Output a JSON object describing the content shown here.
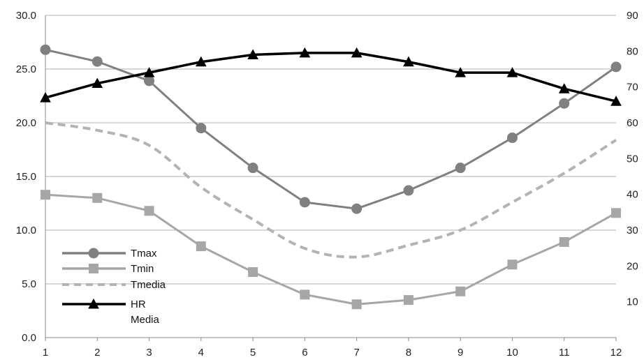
{
  "chart_data": {
    "type": "line",
    "title": "",
    "xlabel": "",
    "ylabel": "",
    "y2label": "",
    "categories": [
      "1",
      "2",
      "3",
      "4",
      "5",
      "6",
      "7",
      "8",
      "9",
      "10",
      "11",
      "12"
    ],
    "ylim": [
      0,
      30
    ],
    "y_ticks": [
      "0.0",
      "5.0",
      "10.0",
      "15.0",
      "20.0",
      "25.0",
      "30.0"
    ],
    "y2lim": [
      0,
      90
    ],
    "y2_ticks": [
      "10",
      "20",
      "30",
      "40",
      "50",
      "60",
      "70",
      "80",
      "90"
    ],
    "grid": true,
    "legend_position": "bottom-left",
    "series": [
      {
        "name": "Tmax",
        "axis": "left",
        "marker": "circle",
        "line_style": "solid",
        "color": "#808080",
        "values": [
          26.8,
          25.7,
          23.9,
          19.5,
          15.8,
          12.6,
          12.0,
          13.7,
          15.8,
          18.6,
          21.8,
          25.2
        ]
      },
      {
        "name": "Tmin",
        "axis": "left",
        "marker": "square",
        "line_style": "solid",
        "color": "#a6a6a6",
        "values": [
          13.3,
          13.0,
          11.8,
          8.5,
          6.1,
          4.0,
          3.1,
          3.5,
          4.3,
          6.8,
          8.9,
          11.6
        ]
      },
      {
        "name": "Tmedia",
        "axis": "left",
        "marker": "none",
        "line_style": "dashed",
        "color": "#b3b3b3",
        "values": [
          20.0,
          19.3,
          17.9,
          14.0,
          11.0,
          8.3,
          7.5,
          8.6,
          10.0,
          12.6,
          15.3,
          18.4
        ]
      },
      {
        "name": "HR",
        "name_line2": "Media",
        "axis": "right",
        "marker": "triangle",
        "line_style": "solid",
        "color": "#000000",
        "values": [
          67,
          71,
          74,
          77,
          79,
          79.5,
          79.5,
          77,
          74,
          74,
          69.5,
          66
        ]
      }
    ]
  }
}
